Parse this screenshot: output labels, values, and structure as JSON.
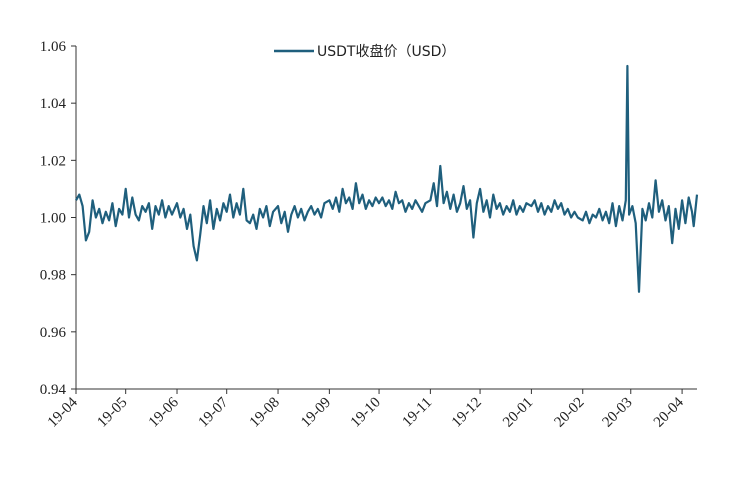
{
  "chart_data": {
    "type": "line",
    "title": "",
    "xlabel": "",
    "ylabel": "",
    "ylim": [
      0.94,
      1.06
    ],
    "yticks": [
      "0.94",
      "0.96",
      "0.98",
      "1.00",
      "1.02",
      "1.04",
      "1.06"
    ],
    "x_range": [
      "2019-04-01",
      "2020-04-10"
    ],
    "x_tick_labels": [
      {
        "date": "2019-04-01",
        "label": "19-04"
      },
      {
        "date": "2019-05-01",
        "label": "19-05"
      },
      {
        "date": "2019-06-01",
        "label": "19-06"
      },
      {
        "date": "2019-07-01",
        "label": "19-07"
      },
      {
        "date": "2019-08-01",
        "label": "19-08"
      },
      {
        "date": "2019-09-01",
        "label": "19-09"
      },
      {
        "date": "2019-10-01",
        "label": "19-10"
      },
      {
        "date": "2019-11-01",
        "label": "19-11"
      },
      {
        "date": "2019-12-01",
        "label": "19-12"
      },
      {
        "date": "2020-01-01",
        "label": "20-01"
      },
      {
        "date": "2020-02-01",
        "label": "20-02"
      },
      {
        "date": "2020-03-01",
        "label": "20-03"
      },
      {
        "date": "2020-04-01",
        "label": "20-04"
      }
    ],
    "grid": false,
    "legend_position": "top-center",
    "series": [
      {
        "name": "USDT收盘价（USD）",
        "color": "#1f5f7d",
        "points": [
          [
            "2019-04-01",
            1.006
          ],
          [
            "2019-04-03",
            1.008
          ],
          [
            "2019-04-05",
            1.004
          ],
          [
            "2019-04-07",
            0.992
          ],
          [
            "2019-04-09",
            0.995
          ],
          [
            "2019-04-11",
            1.006
          ],
          [
            "2019-04-13",
            1.0
          ],
          [
            "2019-04-15",
            1.003
          ],
          [
            "2019-04-17",
            0.998
          ],
          [
            "2019-04-19",
            1.002
          ],
          [
            "2019-04-21",
            0.999
          ],
          [
            "2019-04-23",
            1.005
          ],
          [
            "2019-04-25",
            0.997
          ],
          [
            "2019-04-27",
            1.003
          ],
          [
            "2019-04-29",
            1.001
          ],
          [
            "2019-05-01",
            1.01
          ],
          [
            "2019-05-03",
            1.0
          ],
          [
            "2019-05-05",
            1.007
          ],
          [
            "2019-05-07",
            1.001
          ],
          [
            "2019-05-09",
            0.999
          ],
          [
            "2019-05-11",
            1.004
          ],
          [
            "2019-05-13",
            1.002
          ],
          [
            "2019-05-15",
            1.005
          ],
          [
            "2019-05-17",
            0.996
          ],
          [
            "2019-05-19",
            1.004
          ],
          [
            "2019-05-21",
            1.001
          ],
          [
            "2019-05-23",
            1.006
          ],
          [
            "2019-05-25",
            1.0
          ],
          [
            "2019-05-27",
            1.004
          ],
          [
            "2019-05-29",
            1.001
          ],
          [
            "2019-06-01",
            1.005
          ],
          [
            "2019-06-03",
            1.0
          ],
          [
            "2019-06-05",
            1.003
          ],
          [
            "2019-06-07",
            0.996
          ],
          [
            "2019-06-09",
            1.001
          ],
          [
            "2019-06-11",
            0.99
          ],
          [
            "2019-06-13",
            0.985
          ],
          [
            "2019-06-15",
            0.994
          ],
          [
            "2019-06-17",
            1.004
          ],
          [
            "2019-06-19",
            0.998
          ],
          [
            "2019-06-21",
            1.006
          ],
          [
            "2019-06-23",
            0.996
          ],
          [
            "2019-06-25",
            1.003
          ],
          [
            "2019-06-27",
            0.999
          ],
          [
            "2019-06-29",
            1.005
          ],
          [
            "2019-07-01",
            1.002
          ],
          [
            "2019-07-03",
            1.008
          ],
          [
            "2019-07-05",
            1.0
          ],
          [
            "2019-07-07",
            1.005
          ],
          [
            "2019-07-09",
            1.001
          ],
          [
            "2019-07-11",
            1.01
          ],
          [
            "2019-07-13",
            0.999
          ],
          [
            "2019-07-15",
            0.998
          ],
          [
            "2019-07-17",
            1.001
          ],
          [
            "2019-07-19",
            0.996
          ],
          [
            "2019-07-21",
            1.003
          ],
          [
            "2019-07-23",
            1.0
          ],
          [
            "2019-07-25",
            1.004
          ],
          [
            "2019-07-27",
            0.997
          ],
          [
            "2019-07-29",
            1.002
          ],
          [
            "2019-08-01",
            1.004
          ],
          [
            "2019-08-03",
            0.998
          ],
          [
            "2019-08-05",
            1.002
          ],
          [
            "2019-08-07",
            0.995
          ],
          [
            "2019-08-09",
            1.001
          ],
          [
            "2019-08-11",
            1.004
          ],
          [
            "2019-08-13",
            1.0
          ],
          [
            "2019-08-15",
            1.003
          ],
          [
            "2019-08-17",
            0.999
          ],
          [
            "2019-08-19",
            1.002
          ],
          [
            "2019-08-21",
            1.004
          ],
          [
            "2019-08-23",
            1.001
          ],
          [
            "2019-08-25",
            1.003
          ],
          [
            "2019-08-27",
            1.0
          ],
          [
            "2019-08-29",
            1.005
          ],
          [
            "2019-09-01",
            1.006
          ],
          [
            "2019-09-03",
            1.003
          ],
          [
            "2019-09-05",
            1.007
          ],
          [
            "2019-09-07",
            1.002
          ],
          [
            "2019-09-09",
            1.01
          ],
          [
            "2019-09-11",
            1.005
          ],
          [
            "2019-09-13",
            1.007
          ],
          [
            "2019-09-15",
            1.003
          ],
          [
            "2019-09-17",
            1.012
          ],
          [
            "2019-09-19",
            1.005
          ],
          [
            "2019-09-21",
            1.008
          ],
          [
            "2019-09-23",
            1.003
          ],
          [
            "2019-09-25",
            1.006
          ],
          [
            "2019-09-27",
            1.004
          ],
          [
            "2019-09-29",
            1.007
          ],
          [
            "2019-10-01",
            1.005
          ],
          [
            "2019-10-03",
            1.007
          ],
          [
            "2019-10-05",
            1.004
          ],
          [
            "2019-10-07",
            1.006
          ],
          [
            "2019-10-09",
            1.003
          ],
          [
            "2019-10-11",
            1.009
          ],
          [
            "2019-10-13",
            1.005
          ],
          [
            "2019-10-15",
            1.006
          ],
          [
            "2019-10-17",
            1.002
          ],
          [
            "2019-10-19",
            1.005
          ],
          [
            "2019-10-21",
            1.003
          ],
          [
            "2019-10-23",
            1.006
          ],
          [
            "2019-10-25",
            1.004
          ],
          [
            "2019-10-27",
            1.002
          ],
          [
            "2019-10-29",
            1.005
          ],
          [
            "2019-11-01",
            1.006
          ],
          [
            "2019-11-03",
            1.012
          ],
          [
            "2019-11-05",
            1.004
          ],
          [
            "2019-11-07",
            1.018
          ],
          [
            "2019-11-09",
            1.005
          ],
          [
            "2019-11-11",
            1.009
          ],
          [
            "2019-11-13",
            1.003
          ],
          [
            "2019-11-15",
            1.008
          ],
          [
            "2019-11-17",
            1.002
          ],
          [
            "2019-11-19",
            1.005
          ],
          [
            "2019-11-21",
            1.011
          ],
          [
            "2019-11-23",
            1.003
          ],
          [
            "2019-11-25",
            1.006
          ],
          [
            "2019-11-27",
            0.993
          ],
          [
            "2019-11-29",
            1.005
          ],
          [
            "2019-12-01",
            1.01
          ],
          [
            "2019-12-03",
            1.002
          ],
          [
            "2019-12-05",
            1.006
          ],
          [
            "2019-12-07",
            1.0
          ],
          [
            "2019-12-09",
            1.008
          ],
          [
            "2019-12-11",
            1.003
          ],
          [
            "2019-12-13",
            1.005
          ],
          [
            "2019-12-15",
            1.001
          ],
          [
            "2019-12-17",
            1.004
          ],
          [
            "2019-12-19",
            1.002
          ],
          [
            "2019-12-21",
            1.006
          ],
          [
            "2019-12-23",
            1.001
          ],
          [
            "2019-12-25",
            1.004
          ],
          [
            "2019-12-27",
            1.002
          ],
          [
            "2019-12-29",
            1.005
          ],
          [
            "2020-01-01",
            1.004
          ],
          [
            "2020-01-03",
            1.006
          ],
          [
            "2020-01-05",
            1.002
          ],
          [
            "2020-01-07",
            1.005
          ],
          [
            "2020-01-09",
            1.001
          ],
          [
            "2020-01-11",
            1.004
          ],
          [
            "2020-01-13",
            1.002
          ],
          [
            "2020-01-15",
            1.006
          ],
          [
            "2020-01-17",
            1.003
          ],
          [
            "2020-01-19",
            1.005
          ],
          [
            "2020-01-21",
            1.001
          ],
          [
            "2020-01-23",
            1.003
          ],
          [
            "2020-01-25",
            1.0
          ],
          [
            "2020-01-27",
            1.002
          ],
          [
            "2020-01-29",
            1.0
          ],
          [
            "2020-02-01",
            0.999
          ],
          [
            "2020-02-03",
            1.002
          ],
          [
            "2020-02-05",
            0.998
          ],
          [
            "2020-02-07",
            1.001
          ],
          [
            "2020-02-09",
            1.0
          ],
          [
            "2020-02-11",
            1.003
          ],
          [
            "2020-02-13",
            0.999
          ],
          [
            "2020-02-15",
            1.002
          ],
          [
            "2020-02-17",
            0.998
          ],
          [
            "2020-02-19",
            1.005
          ],
          [
            "2020-02-21",
            0.997
          ],
          [
            "2020-02-23",
            1.004
          ],
          [
            "2020-02-25",
            0.999
          ],
          [
            "2020-02-27",
            1.006
          ],
          [
            "2020-02-28",
            1.053
          ],
          [
            "2020-02-29",
            1.001
          ],
          [
            "2020-03-02",
            1.004
          ],
          [
            "2020-03-04",
            0.998
          ],
          [
            "2020-03-06",
            0.974
          ],
          [
            "2020-03-08",
            1.003
          ],
          [
            "2020-03-10",
            0.999
          ],
          [
            "2020-03-12",
            1.005
          ],
          [
            "2020-03-14",
            1.0
          ],
          [
            "2020-03-16",
            1.013
          ],
          [
            "2020-03-18",
            1.002
          ],
          [
            "2020-03-20",
            1.006
          ],
          [
            "2020-03-22",
            0.999
          ],
          [
            "2020-03-24",
            1.004
          ],
          [
            "2020-03-26",
            0.991
          ],
          [
            "2020-03-28",
            1.003
          ],
          [
            "2020-03-30",
            0.996
          ],
          [
            "2020-04-01",
            1.006
          ],
          [
            "2020-04-03",
            0.998
          ],
          [
            "2020-04-05",
            1.007
          ],
          [
            "2020-04-07",
            1.002
          ],
          [
            "2020-04-08",
            0.997
          ],
          [
            "2020-04-10",
            1.008
          ]
        ]
      }
    ]
  }
}
